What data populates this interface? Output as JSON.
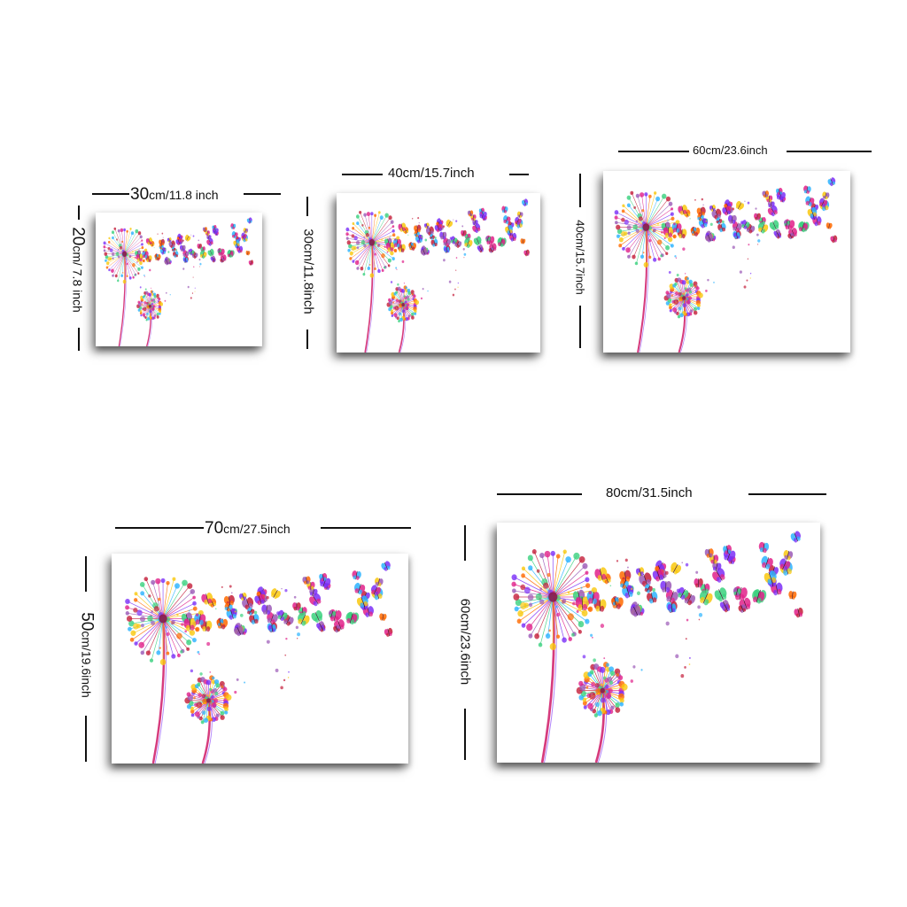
{
  "sizes": [
    {
      "width_value": "30",
      "width_unit": "cm/11.8 inch",
      "height_value": "20",
      "height_unit": "cm/ 7.8 inch"
    },
    {
      "width_label": "40cm/15.7inch",
      "height_label": "30cm/11.8inch"
    },
    {
      "width_label": "60cm/23.6inch",
      "height_label": "40cm/15.7inch"
    },
    {
      "width_value": "70",
      "width_unit": "cm/27.5inch",
      "height_value": "50",
      "height_unit": "cm/19.6inch"
    },
    {
      "width_label": "80cm/31.5inch",
      "height_label": "60cm/23.6inch"
    }
  ],
  "artwork": {
    "subject": "dandelions releasing colorful butterflies",
    "colors": [
      "#e0218a",
      "#7b2ff7",
      "#ff6a00",
      "#f9c80e",
      "#2bb3ff",
      "#3ad17e",
      "#c41e3a",
      "#9b59b6"
    ]
  }
}
